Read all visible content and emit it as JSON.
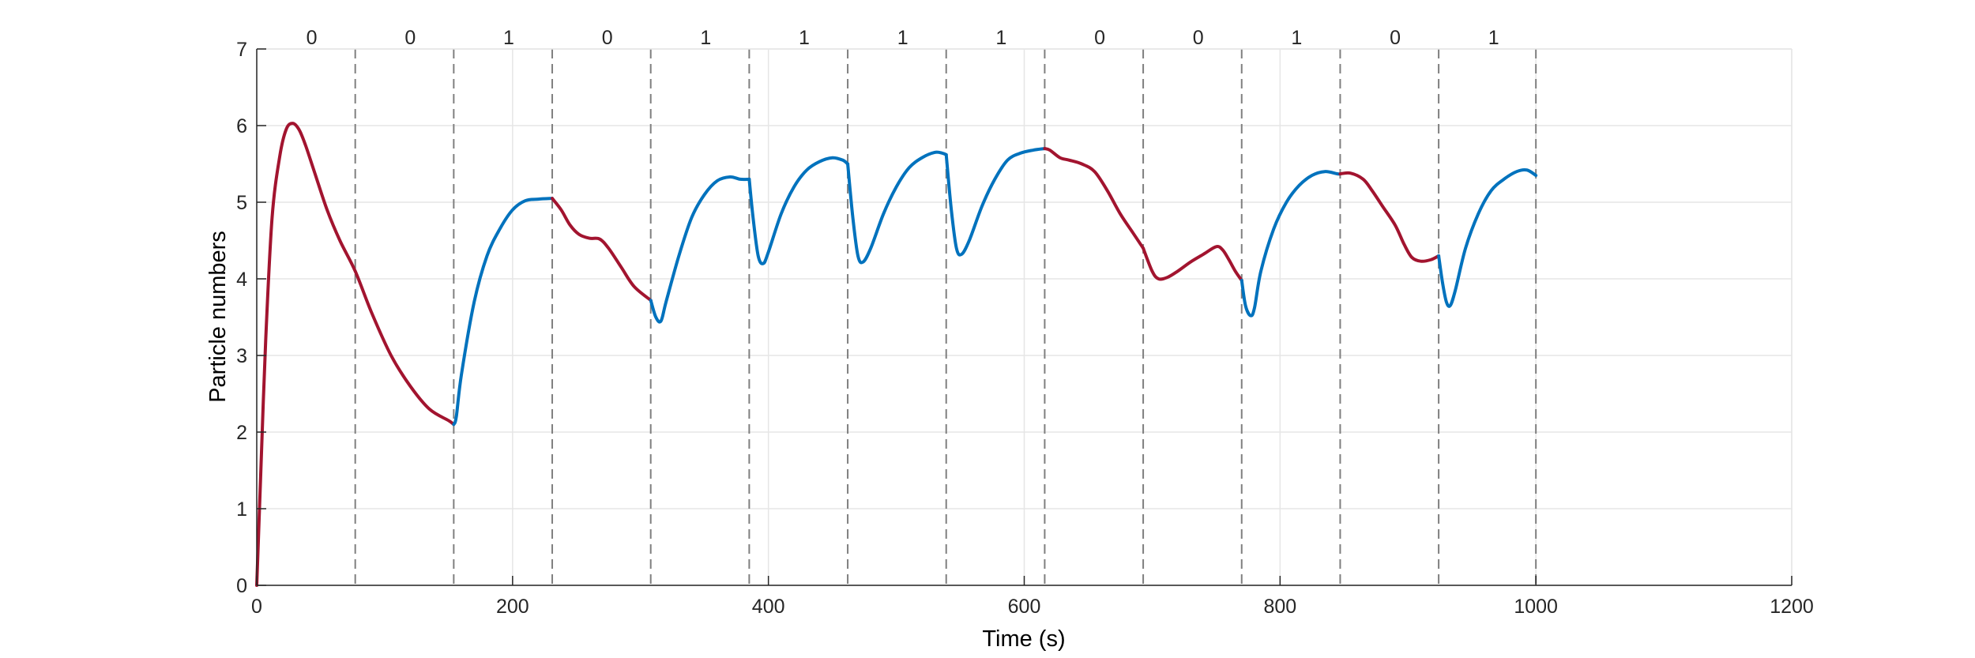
{
  "chart_data": {
    "type": "line",
    "title": "",
    "xlabel": "Time (s)",
    "ylabel": "Particle numbers",
    "xlim": [
      0,
      1200
    ],
    "ylim": [
      0,
      7
    ],
    "xticks": [
      0,
      200,
      400,
      600,
      800,
      1000,
      1200
    ],
    "yticks": [
      0,
      1,
      2,
      3,
      4,
      5,
      6,
      7
    ],
    "grid": true,
    "legend": "none",
    "colors": {
      "state_0": "#A2142F",
      "state_1": "#0072BD",
      "divider": "#7f7f7f",
      "grid": "#e6e6e6",
      "axis": "#262626"
    },
    "dividers": [
      77,
      154,
      231,
      308,
      385,
      462,
      539,
      616,
      693,
      770,
      847,
      924,
      1000
    ],
    "segment_labels": [
      {
        "x": 43,
        "text": "0"
      },
      {
        "x": 120,
        "text": "0"
      },
      {
        "x": 197,
        "text": "1"
      },
      {
        "x": 274,
        "text": "0"
      },
      {
        "x": 351,
        "text": "1"
      },
      {
        "x": 428,
        "text": "1"
      },
      {
        "x": 505,
        "text": "1"
      },
      {
        "x": 582,
        "text": "1"
      },
      {
        "x": 659,
        "text": "0"
      },
      {
        "x": 736,
        "text": "0"
      },
      {
        "x": 813,
        "text": "1"
      },
      {
        "x": 890,
        "text": "0"
      },
      {
        "x": 967,
        "text": "1"
      }
    ],
    "segments": [
      {
        "state": "0",
        "x": [
          0,
          3,
          7,
          12,
          18,
          23,
          28,
          33,
          38,
          45,
          55,
          65,
          77,
          90,
          105,
          120,
          135,
          150,
          154
        ],
        "y": [
          0,
          1.4,
          3.2,
          4.8,
          5.6,
          5.95,
          6.03,
          5.95,
          5.75,
          5.4,
          4.9,
          4.5,
          4.1,
          3.55,
          3.0,
          2.6,
          2.3,
          2.15,
          2.1
        ]
      },
      {
        "state": "1",
        "x": [
          154,
          156,
          160,
          170,
          180,
          190,
          200,
          210,
          220,
          231
        ],
        "y": [
          2.1,
          2.2,
          2.75,
          3.7,
          4.3,
          4.65,
          4.9,
          5.02,
          5.04,
          5.05
        ]
      },
      {
        "state": "0",
        "x": [
          231,
          238,
          245,
          252,
          260,
          268,
          275,
          285,
          295,
          308
        ],
        "y": [
          5.05,
          4.9,
          4.7,
          4.58,
          4.53,
          4.52,
          4.4,
          4.15,
          3.9,
          3.72
        ]
      },
      {
        "state": "1",
        "x": [
          308,
          312,
          316,
          320,
          330,
          340,
          350,
          360,
          370,
          378,
          385
        ],
        "y": [
          3.72,
          3.5,
          3.45,
          3.7,
          4.3,
          4.8,
          5.1,
          5.28,
          5.33,
          5.3,
          5.3
        ]
      },
      {
        "state": "1",
        "x": [
          385,
          388,
          392,
          396,
          400,
          410,
          420,
          430,
          440,
          450,
          458,
          462
        ],
        "y": [
          5.3,
          4.8,
          4.3,
          4.2,
          4.35,
          4.85,
          5.2,
          5.42,
          5.53,
          5.58,
          5.55,
          5.5
        ]
      },
      {
        "state": "1",
        "x": [
          462,
          466,
          470,
          474,
          480,
          490,
          500,
          510,
          520,
          530,
          536,
          539
        ],
        "y": [
          5.5,
          4.8,
          4.3,
          4.22,
          4.4,
          4.85,
          5.2,
          5.45,
          5.58,
          5.65,
          5.64,
          5.62
        ]
      },
      {
        "state": "1",
        "x": [
          539,
          543,
          547,
          551,
          557,
          567,
          577,
          587,
          597,
          607,
          616
        ],
        "y": [
          5.62,
          4.9,
          4.4,
          4.32,
          4.5,
          4.95,
          5.3,
          5.55,
          5.64,
          5.68,
          5.7
        ]
      },
      {
        "state": "0",
        "x": [
          616,
          620,
          628,
          635,
          645,
          655,
          665,
          675,
          685,
          693
        ],
        "y": [
          5.7,
          5.68,
          5.58,
          5.55,
          5.5,
          5.4,
          5.15,
          4.85,
          4.6,
          4.4
        ]
      },
      {
        "state": "0",
        "x": [
          693,
          700,
          705,
          712,
          720,
          730,
          740,
          750,
          755,
          760,
          765,
          770
        ],
        "y": [
          4.4,
          4.1,
          4.0,
          4.02,
          4.1,
          4.22,
          4.32,
          4.42,
          4.38,
          4.25,
          4.1,
          3.98
        ]
      },
      {
        "state": "1",
        "x": [
          770,
          773,
          777,
          780,
          785,
          795,
          805,
          815,
          825,
          835,
          845,
          847
        ],
        "y": [
          3.98,
          3.65,
          3.52,
          3.62,
          4.1,
          4.65,
          5.0,
          5.22,
          5.35,
          5.4,
          5.37,
          5.37
        ]
      },
      {
        "state": "0",
        "x": [
          847,
          855,
          865,
          872,
          880,
          890,
          897,
          903,
          910,
          918,
          924
        ],
        "y": [
          5.37,
          5.38,
          5.3,
          5.15,
          4.95,
          4.7,
          4.45,
          4.28,
          4.23,
          4.25,
          4.3
        ]
      },
      {
        "state": "1",
        "x": [
          924,
          927,
          930,
          933,
          937,
          945,
          955,
          965,
          975,
          985,
          993,
          1000
        ],
        "y": [
          4.3,
          3.95,
          3.7,
          3.65,
          3.85,
          4.4,
          4.85,
          5.15,
          5.3,
          5.4,
          5.42,
          5.35
        ]
      }
    ]
  }
}
